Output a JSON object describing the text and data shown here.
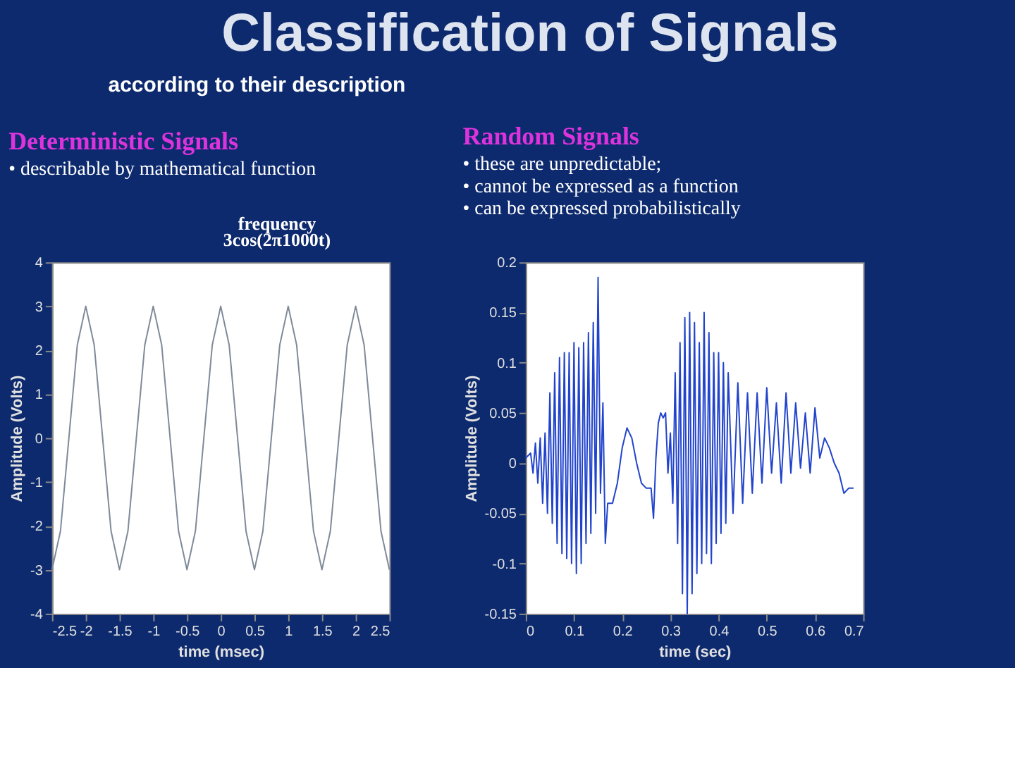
{
  "chart_data": [
    {
      "type": "other",
      "title": "Classification of Signals",
      "annotations": [
        "according to their description"
      ]
    },
    {
      "type": "line",
      "title": "Deterministic Signals",
      "subtitle": [
        "• describable by mathematical function"
      ],
      "annotations": [
        "frequency",
        "3cos(2π1000t)"
      ],
      "xlabel": "time (msec)",
      "ylabel": "Amplitude (Volts)",
      "xlim": [
        -2.5,
        2.5
      ],
      "ylim": [
        -4,
        4
      ],
      "xticks": [
        -2.5,
        -2,
        -1.5,
        -1,
        -0.5,
        0,
        0.5,
        1,
        1.5,
        2,
        2.5
      ],
      "yticks": [
        -4,
        -3,
        -2,
        -1,
        0,
        1,
        2,
        3,
        4
      ],
      "grid": false,
      "x": [
        -2.5,
        -2.375,
        -2.25,
        -2.125,
        -2,
        -1.875,
        -1.75,
        -1.625,
        -1.5,
        -1.375,
        -1.25,
        -1.125,
        -1,
        -0.875,
        -0.75,
        -0.625,
        -0.5,
        -0.375,
        -0.25,
        -0.125,
        0,
        0.125,
        0.25,
        0.375,
        0.5,
        0.625,
        0.75,
        0.875,
        1,
        1.125,
        1.25,
        1.375,
        1.5,
        1.625,
        1.75,
        1.875,
        2,
        2.125,
        2.25,
        2.375,
        2.5
      ],
      "series": [
        {
          "color": "#7f8a99",
          "values": [
            -3,
            -2.12,
            0,
            2.12,
            3,
            2.12,
            0,
            -2.12,
            -3,
            -2.12,
            0,
            2.12,
            3,
            2.12,
            0,
            -2.12,
            -3,
            -2.12,
            0,
            2.12,
            3,
            2.12,
            0,
            -2.12,
            -3,
            -2.12,
            0,
            2.12,
            3,
            2.12,
            0,
            -2.12,
            -3,
            -2.12,
            0,
            2.12,
            3,
            2.12,
            0,
            -2.12,
            -3
          ]
        }
      ]
    },
    {
      "type": "line",
      "title": "Random Signals",
      "subtitle": [
        "• these are unpredictable;",
        "• cannot be expressed as a function",
        "• can be expressed probabilistically"
      ],
      "xlabel": "time (sec)",
      "ylabel": "Amplitude (Volts)",
      "xlim": [
        0,
        0.7
      ],
      "ylim": [
        -0.15,
        0.2
      ],
      "xticks": [
        0,
        0.1,
        0.2,
        0.3,
        0.4,
        0.5,
        0.6,
        0.7
      ],
      "yticks": [
        -0.15,
        -0.1,
        -0.05,
        0,
        0.05,
        0.1,
        0.15,
        0.2
      ],
      "grid": false,
      "x": [
        0,
        0.01,
        0.015,
        0.02,
        0.025,
        0.03,
        0.035,
        0.04,
        0.045,
        0.05,
        0.055,
        0.06,
        0.065,
        0.07,
        0.075,
        0.08,
        0.085,
        0.09,
        0.095,
        0.1,
        0.105,
        0.11,
        0.115,
        0.12,
        0.125,
        0.13,
        0.135,
        0.14,
        0.145,
        0.15,
        0.155,
        0.16,
        0.165,
        0.17,
        0.18,
        0.19,
        0.2,
        0.21,
        0.22,
        0.23,
        0.24,
        0.25,
        0.26,
        0.265,
        0.27,
        0.275,
        0.28,
        0.285,
        0.29,
        0.295,
        0.3,
        0.305,
        0.31,
        0.315,
        0.32,
        0.325,
        0.33,
        0.335,
        0.34,
        0.345,
        0.35,
        0.355,
        0.36,
        0.365,
        0.37,
        0.375,
        0.38,
        0.385,
        0.39,
        0.395,
        0.4,
        0.405,
        0.41,
        0.415,
        0.42,
        0.43,
        0.44,
        0.45,
        0.46,
        0.47,
        0.48,
        0.49,
        0.5,
        0.51,
        0.52,
        0.53,
        0.54,
        0.55,
        0.56,
        0.57,
        0.58,
        0.59,
        0.6,
        0.61,
        0.62,
        0.63,
        0.64,
        0.65,
        0.66,
        0.67,
        0.68
      ],
      "series": [
        {
          "color": "#2244cc",
          "values": [
            0.005,
            0.01,
            -0.01,
            0.02,
            -0.02,
            0.025,
            -0.04,
            0.03,
            -0.05,
            0.07,
            -0.06,
            0.09,
            -0.08,
            0.105,
            -0.09,
            0.11,
            -0.095,
            0.11,
            -0.1,
            0.12,
            -0.11,
            0.115,
            -0.1,
            0.12,
            -0.08,
            0.13,
            -0.07,
            0.14,
            -0.05,
            0.185,
            -0.03,
            0.06,
            -0.08,
            -0.04,
            -0.04,
            -0.02,
            0.015,
            0.035,
            0.025,
            0,
            -0.02,
            -0.025,
            -0.025,
            -0.055,
            0.005,
            0.04,
            0.05,
            0.045,
            0.05,
            -0.01,
            0.03,
            -0.04,
            0.09,
            -0.08,
            0.12,
            -0.13,
            0.145,
            -0.15,
            0.15,
            -0.13,
            0.14,
            -0.11,
            0.12,
            -0.1,
            0.15,
            -0.09,
            0.13,
            -0.1,
            0.11,
            -0.08,
            0.11,
            -0.07,
            0.1,
            -0.06,
            0.09,
            -0.05,
            0.08,
            -0.04,
            0.07,
            -0.03,
            0.07,
            -0.02,
            0.075,
            -0.01,
            0.06,
            -0.02,
            0.07,
            -0.01,
            0.06,
            -0.005,
            0.05,
            -0.01,
            0.055,
            0.005,
            0.025,
            0.015,
            0,
            -0.01,
            -0.03,
            -0.025,
            -0.025
          ]
        }
      ]
    }
  ]
}
